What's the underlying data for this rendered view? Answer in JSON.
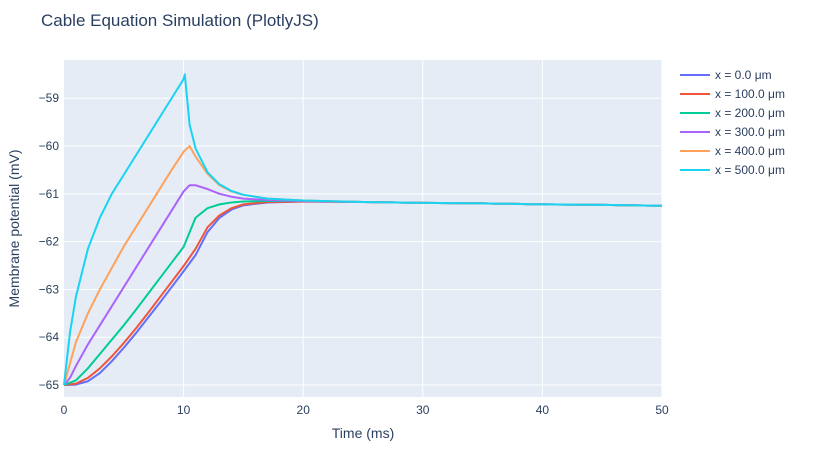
{
  "chart_data": {
    "type": "line",
    "title": "Cable Equation Simulation (PlotlyJS)",
    "xlabel": "Time (ms)",
    "ylabel": "Membrane potential (mV)",
    "xlim": [
      0,
      50
    ],
    "ylim": [
      -65.25,
      -58.2
    ],
    "xticks": [
      0,
      10,
      20,
      30,
      40,
      50
    ],
    "yticks": [
      -65,
      -64,
      -63,
      -62,
      -61,
      -60,
      -59
    ],
    "grid": true,
    "legend_position": "right",
    "background": "#e5ecf6",
    "series": [
      {
        "name": "x = 0.0 μm",
        "color": "#636efa",
        "x": [
          0,
          1,
          2,
          3,
          4,
          5,
          6,
          7,
          8,
          9,
          10,
          11,
          12,
          13,
          14,
          15,
          17,
          20,
          25,
          30,
          35,
          40,
          45,
          50
        ],
        "y": [
          -65.0,
          -64.99,
          -64.92,
          -64.75,
          -64.5,
          -64.22,
          -63.92,
          -63.6,
          -63.28,
          -62.95,
          -62.62,
          -62.28,
          -61.8,
          -61.5,
          -61.33,
          -61.24,
          -61.18,
          -61.16,
          -61.17,
          -61.19,
          -61.2,
          -61.22,
          -61.23,
          -61.25
        ]
      },
      {
        "name": "x = 100.0 μm",
        "color": "#ef553b",
        "x": [
          0,
          1,
          2,
          3,
          4,
          5,
          6,
          7,
          8,
          9,
          10,
          11,
          12,
          13,
          14,
          15,
          17,
          20,
          25,
          30,
          35,
          40,
          45,
          50
        ],
        "y": [
          -65.0,
          -64.97,
          -64.85,
          -64.65,
          -64.4,
          -64.12,
          -63.82,
          -63.5,
          -63.17,
          -62.84,
          -62.51,
          -62.15,
          -61.7,
          -61.45,
          -61.3,
          -61.22,
          -61.17,
          -61.16,
          -61.17,
          -61.19,
          -61.2,
          -61.22,
          -61.23,
          -61.25
        ]
      },
      {
        "name": "x = 200.0 μm",
        "color": "#00cc96",
        "x": [
          0,
          1,
          2,
          3,
          4,
          5,
          6,
          7,
          8,
          9,
          10,
          11,
          12,
          13,
          14,
          15,
          17,
          20,
          25,
          30,
          35,
          40,
          45,
          50
        ],
        "y": [
          -65.0,
          -64.9,
          -64.65,
          -64.35,
          -64.05,
          -63.75,
          -63.43,
          -63.1,
          -62.77,
          -62.44,
          -62.11,
          -61.5,
          -61.3,
          -61.22,
          -61.18,
          -61.16,
          -61.15,
          -61.15,
          -61.17,
          -61.19,
          -61.2,
          -61.22,
          -61.23,
          -61.25
        ]
      },
      {
        "name": "x = 300.0 μm",
        "color": "#ab63fa",
        "x": [
          0,
          0.5,
          1,
          2,
          3,
          4,
          5,
          6,
          7,
          8,
          9,
          10,
          10.5,
          11,
          12,
          13,
          14,
          15,
          17,
          20,
          25,
          30,
          35,
          40,
          45,
          50
        ],
        "y": [
          -65.0,
          -64.85,
          -64.6,
          -64.15,
          -63.75,
          -63.35,
          -62.95,
          -62.55,
          -62.15,
          -61.75,
          -61.35,
          -60.95,
          -60.82,
          -60.82,
          -60.9,
          -61.0,
          -61.06,
          -61.1,
          -61.13,
          -61.15,
          -61.17,
          -61.19,
          -61.2,
          -61.22,
          -61.23,
          -61.25
        ]
      },
      {
        "name": "x = 400.0 μm",
        "color": "#ffa15a",
        "x": [
          0,
          0.5,
          1,
          2,
          3,
          4,
          5,
          6,
          7,
          8,
          9,
          10,
          10.5,
          11,
          12,
          13,
          14,
          15,
          17,
          20,
          25,
          30,
          35,
          40,
          45,
          50
        ],
        "y": [
          -65.0,
          -64.55,
          -64.1,
          -63.5,
          -63.0,
          -62.55,
          -62.1,
          -61.7,
          -61.3,
          -60.9,
          -60.5,
          -60.12,
          -60.0,
          -60.22,
          -60.58,
          -60.82,
          -60.95,
          -61.02,
          -61.1,
          -61.14,
          -61.17,
          -61.19,
          -61.2,
          -61.22,
          -61.23,
          -61.25
        ]
      },
      {
        "name": "x = 500.0 μm",
        "color": "#19d3f3",
        "x": [
          0,
          0.5,
          1,
          2,
          3,
          4,
          5,
          6,
          7,
          8,
          9,
          10,
          10.1,
          10.5,
          11,
          12,
          13,
          14,
          15,
          17,
          20,
          25,
          30,
          35,
          40,
          45,
          50
        ],
        "y": [
          -65.0,
          -63.9,
          -63.15,
          -62.15,
          -61.5,
          -61.0,
          -60.6,
          -60.2,
          -59.8,
          -59.4,
          -59.0,
          -58.6,
          -58.5,
          -59.55,
          -60.05,
          -60.55,
          -60.8,
          -60.94,
          -61.02,
          -61.1,
          -61.14,
          -61.17,
          -61.19,
          -61.2,
          -61.22,
          -61.23,
          -61.25
        ]
      }
    ]
  }
}
